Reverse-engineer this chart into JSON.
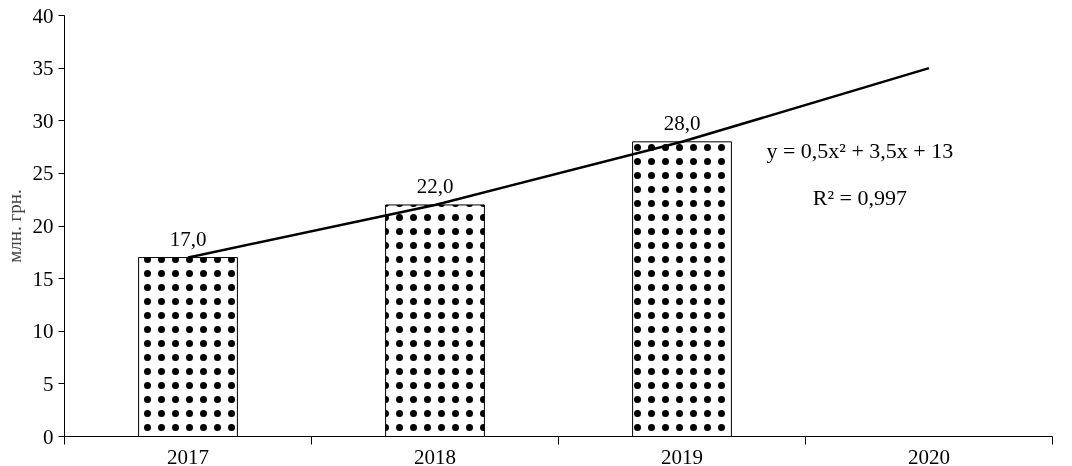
{
  "chart_data": {
    "type": "bar",
    "categories": [
      "2017",
      "2018",
      "2019",
      "2020"
    ],
    "ylabel": "млн. грн.",
    "ylim": [
      0,
      40
    ],
    "yticks": [
      0,
      5,
      10,
      15,
      20,
      25,
      30,
      35,
      40
    ],
    "grid": false,
    "series": [
      {
        "color": "#ffffff",
        "values": [
          17,
          22,
          28,
          null
        ],
        "value_labels": [
          "17,0",
          "22,0",
          "28,0",
          null
        ]
      },
      {
        "type": "line",
        "color": "#000000",
        "values": [
          17,
          22,
          28,
          35
        ]
      }
    ],
    "annotations": [
      "y = 0,5x² + 3,5x + 13",
      "R² = 0,997"
    ]
  }
}
